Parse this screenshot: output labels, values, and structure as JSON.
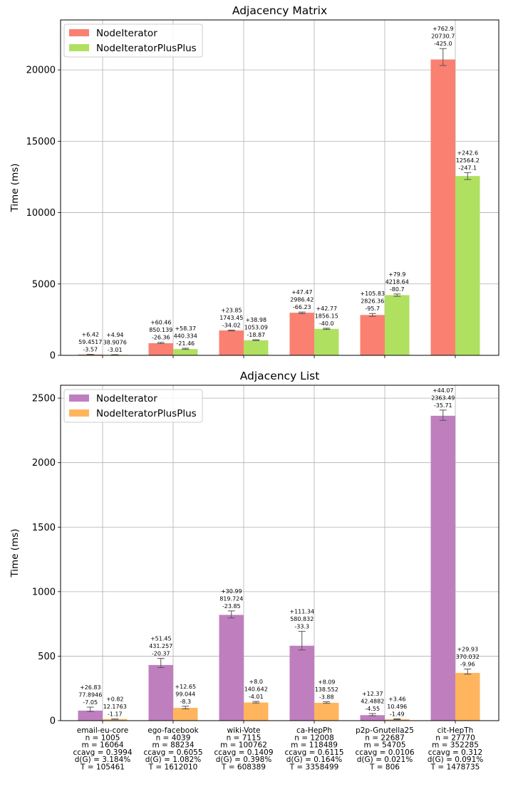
{
  "chart_data": [
    {
      "type": "bar",
      "title": "Adjacency Matrix",
      "xlabel": "",
      "ylabel": "Time (ms)",
      "ylim": [
        0,
        23500
      ],
      "yticks": [
        0,
        5000,
        10000,
        15000,
        20000
      ],
      "grid": true,
      "legend": "top-left",
      "categories": [
        "email-eu-core",
        "ego-facebook",
        "wiki-Vote",
        "ca-HepPh",
        "p2p-Gnutella25",
        "cit-HepTh"
      ],
      "series": [
        {
          "name": "NodeIterator",
          "color": "#fa8072",
          "values": [
            59.4517,
            850.139,
            1743.45,
            2986.42,
            2826.36,
            20730.7
          ],
          "err_plus": [
            6.42,
            60.46,
            23.85,
            47.47,
            105.83,
            762.9
          ],
          "err_minus": [
            3.57,
            26.36,
            34.02,
            66.23,
            95.7,
            425.0
          ],
          "labels": [
            [
              "+6.42",
              "59.4517",
              "-3.57"
            ],
            [
              "+60.46",
              "850.139",
              "-26.36"
            ],
            [
              "+23.85",
              "1743.45",
              "-34.02"
            ],
            [
              "+47.47",
              "2986.42",
              "-66.23"
            ],
            [
              "+105.83",
              "2826.36",
              "-95.7"
            ],
            [
              "+762.9",
              "20730.7",
              "-425.0"
            ]
          ]
        },
        {
          "name": "NodeIteratorPlusPlus",
          "color": "#b0e060",
          "values": [
            38.9076,
            440.334,
            1053.09,
            1856.15,
            4218.64,
            12564.2
          ],
          "err_plus": [
            4.94,
            58.37,
            38.98,
            42.77,
            79.9,
            242.6
          ],
          "err_minus": [
            3.01,
            21.46,
            18.87,
            40.0,
            80.7,
            247.1
          ],
          "labels": [
            [
              "+4.94",
              "38.9076",
              "-3.01"
            ],
            [
              "+58.37",
              "440.334",
              "-21.46"
            ],
            [
              "+38.98",
              "1053.09",
              "-18.87"
            ],
            [
              "+42.77",
              "1856.15",
              "-40.0"
            ],
            [
              "+79.9",
              "4218.64",
              "-80.7"
            ],
            [
              "+242.6",
              "12564.2",
              "-247.1"
            ]
          ]
        }
      ]
    },
    {
      "type": "bar",
      "title": "Adjacency List",
      "xlabel": "",
      "ylabel": "Time (ms)",
      "ylim": [
        0,
        2600
      ],
      "yticks": [
        0,
        500,
        1000,
        1500,
        2000,
        2500
      ],
      "grid": true,
      "legend": "top-left",
      "categories": [
        "email-eu-core",
        "ego-facebook",
        "wiki-Vote",
        "ca-HepPh",
        "p2p-Gnutella25",
        "cit-HepTh"
      ],
      "category_details": [
        [
          "email-eu-core",
          "n = 1005",
          "m = 16064",
          "ccavg = 0.3994",
          "d(G) = 3.184%",
          "T = 105461"
        ],
        [
          "ego-facebook",
          "n = 4039",
          "m = 88234",
          "ccavg = 0.6055",
          "d(G) = 1.082%",
          "T = 1612010"
        ],
        [
          "wiki-Vote",
          "n = 7115",
          "m = 100762",
          "ccavg = 0.1409",
          "d(G) = 0.398%",
          "T = 608389"
        ],
        [
          "ca-HepPh",
          "n = 12008",
          "m = 118489",
          "ccavg = 0.6115",
          "d(G) = 0.164%",
          "T = 3358499"
        ],
        [
          "p2p-Gnutella25",
          "n = 22687",
          "m = 54705",
          "ccavg = 0.0106",
          "d(G) = 0.021%",
          "T = 806"
        ],
        [
          "cit-HepTh",
          "n = 27770",
          "m = 352285",
          "ccavg = 0.312",
          "d(G) = 0.091%",
          "T = 1478735"
        ]
      ],
      "series": [
        {
          "name": "NodeIterator",
          "color": "#bf7fbf",
          "values": [
            77.8946,
            431.257,
            819.724,
            580.832,
            42.4882,
            2363.49
          ],
          "err_plus": [
            26.83,
            51.45,
            30.99,
            111.34,
            12.37,
            44.07
          ],
          "err_minus": [
            7.05,
            20.37,
            23.85,
            33.3,
            4.55,
            35.71
          ],
          "labels": [
            [
              "+26.83",
              "77.8946",
              "-7.05"
            ],
            [
              "+51.45",
              "431.257",
              "-20.37"
            ],
            [
              "+30.99",
              "819.724",
              "-23.85"
            ],
            [
              "+111.34",
              "580.832",
              "-33.3"
            ],
            [
              "+12.37",
              "42.4882",
              "-4.55"
            ],
            [
              "+44.07",
              "2363.49",
              "-35.71"
            ]
          ]
        },
        {
          "name": "NodeIteratorPlusPlus",
          "color": "#ffb55e",
          "values": [
            12.1763,
            99.044,
            140.642,
            138.552,
            10.496,
            370.032
          ],
          "err_plus": [
            0.82,
            12.65,
            8.0,
            8.09,
            3.46,
            29.93
          ],
          "err_minus": [
            1.17,
            8.3,
            4.01,
            3.88,
            1.49,
            9.96
          ],
          "labels": [
            [
              "+0.82",
              "12.1763",
              "-1.17"
            ],
            [
              "+12.65",
              "99.044",
              "-8.3"
            ],
            [
              "+8.0",
              "140.642",
              "-4.01"
            ],
            [
              "+8.09",
              "138.552",
              "-3.88"
            ],
            [
              "+3.46",
              "10.496",
              "-1.49"
            ],
            [
              "+29.93",
              "370.032",
              "-9.96"
            ]
          ]
        }
      ]
    }
  ]
}
